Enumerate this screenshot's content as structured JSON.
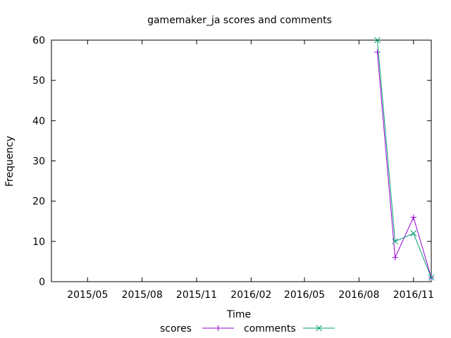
{
  "chart_data": {
    "type": "line",
    "title": "gamemaker_ja scores and comments",
    "xlabel": "Time",
    "ylabel": "Frequency",
    "x_range": [
      "2015-03-01",
      "2016-12-01"
    ],
    "ylim": [
      0,
      60
    ],
    "y_ticks": [
      0,
      10,
      20,
      30,
      40,
      50,
      60
    ],
    "x_ticks": [
      {
        "date": "2015-05-01",
        "label": "2015/05"
      },
      {
        "date": "2015-08-01",
        "label": "2015/08"
      },
      {
        "date": "2015-11-01",
        "label": "2015/11"
      },
      {
        "date": "2016-02-01",
        "label": "2016/02"
      },
      {
        "date": "2016-05-01",
        "label": "2016/05"
      },
      {
        "date": "2016-08-01",
        "label": "2016/08"
      },
      {
        "date": "2016-11-01",
        "label": "2016/11"
      }
    ],
    "grid": false,
    "legend_position": "bottom-center",
    "series": [
      {
        "name": "scores",
        "color": "#9400d3",
        "marker": "plus",
        "points": [
          {
            "x": "2016-09-01",
            "y": 57
          },
          {
            "x": "2016-10-01",
            "y": 6
          },
          {
            "x": "2016-11-01",
            "y": 16
          },
          {
            "x": "2016-12-01",
            "y": 1
          }
        ]
      },
      {
        "name": "comments",
        "color": "#009e73",
        "marker": "cross",
        "points": [
          {
            "x": "2016-09-01",
            "y": 60
          },
          {
            "x": "2016-10-01",
            "y": 10
          },
          {
            "x": "2016-11-01",
            "y": 12
          },
          {
            "x": "2016-12-01",
            "y": 1
          }
        ]
      }
    ]
  }
}
